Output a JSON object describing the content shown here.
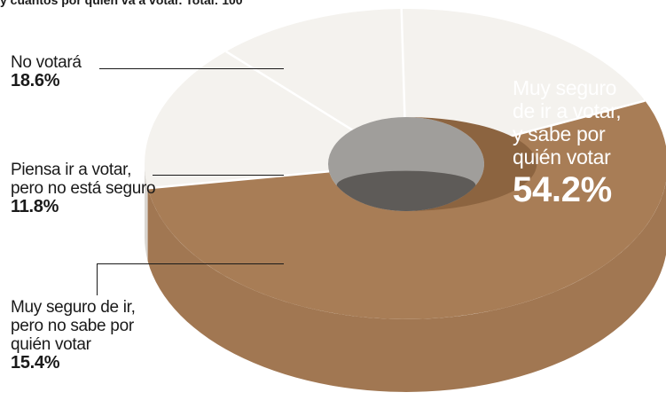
{
  "header": {
    "text": "y cuántos por quién va a votar. Total: 100"
  },
  "chart_data": {
    "type": "pie",
    "variant": "donut-3d",
    "categories": [
      "Muy seguro de ir a votar, y sabe por quién votar",
      "Muy seguro de ir, pero no sabe por quién votar",
      "Piensa ir a votar, pero no está seguro",
      "No votará"
    ],
    "values": [
      54.2,
      15.4,
      11.8,
      18.6
    ],
    "value_labels": [
      "54.2%",
      "15.4%",
      "11.8%",
      "18.6%"
    ],
    "colors": {
      "main": "#a87d56",
      "main_side": "#a17752",
      "rest": "#f4f2ee",
      "rest_side": "#d9d6d1",
      "hole": "#a09e9b",
      "hole_floor": "#5e5b58",
      "inner_main": "#8c6440"
    },
    "labels": {
      "main": {
        "lines": [
          "Muy seguro",
          "de ir a votar,",
          "y sabe por",
          "quién votar"
        ],
        "pct": "54.2%"
      },
      "no_votara": {
        "lines": [
          "No votará"
        ],
        "pct": "18.6%"
      },
      "piensa": {
        "lines": [
          "Piensa ir a votar,",
          "pero no está seguro"
        ],
        "pct": "11.8%"
      },
      "muy_seguro_no_sabe": {
        "lines": [
          "Muy seguro de ir,",
          "pero no sabe por",
          "quién votar"
        ],
        "pct": "15.4%"
      }
    }
  }
}
